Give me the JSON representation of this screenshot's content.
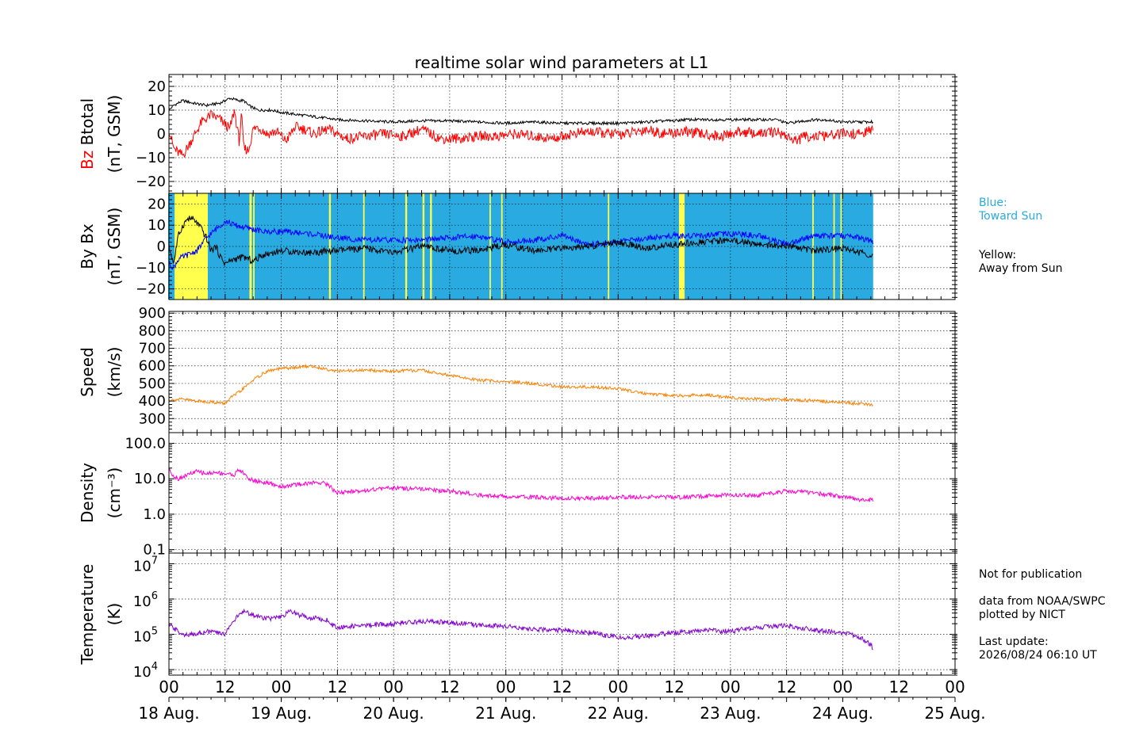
{
  "title": "realtime solar wind parameters at L1",
  "colors": {
    "background": "#ffffff",
    "toward_sun": "#29abe2",
    "away_from_sun": "#ffff4d",
    "btotal": "#000000",
    "bz": "#ff0000",
    "bx": "#0000ff",
    "by": "#000000",
    "speed": "#ff8000",
    "density": "#ff00d0",
    "temperature": "#8000d0",
    "grid": "#000000"
  },
  "legend": {
    "blue_line1": "Blue:",
    "blue_line2": "Toward Sun",
    "yellow_line1": "Yellow:",
    "yellow_line2": "Away from Sun"
  },
  "credits": {
    "not_for_publication": "Not for publication",
    "data_source": "data from NOAA/SWPC",
    "plotted_by": "plotted by NICT",
    "last_update_label": "Last update:",
    "last_update_value": "2026/08/24 06:10 UT"
  },
  "chart_data": [
    {
      "type": "line",
      "panel": "magnetic_field_total",
      "ylabel_parts": [
        "Bz",
        "Btotal",
        "(nT, GSM)"
      ],
      "ylim": [
        -25,
        25
      ],
      "yticks": [
        -20,
        -10,
        0,
        10,
        20
      ],
      "ytick_labels": [
        "−20",
        "−10",
        "0",
        "10",
        "20"
      ],
      "grid": true,
      "series": [
        {
          "name": "Btotal",
          "color": "#000000",
          "x_hours": [
            0,
            1,
            3,
            5,
            8,
            11,
            13,
            15,
            16,
            17,
            19,
            22,
            24,
            28,
            32,
            36,
            42,
            48,
            54,
            60,
            66,
            72,
            78,
            84,
            90,
            96,
            102,
            106,
            108,
            110,
            114,
            120,
            126,
            130,
            132,
            134,
            138,
            140,
            144,
            148,
            150.5
          ],
          "values": [
            10,
            12,
            14,
            13,
            12,
            13,
            15,
            14,
            14,
            12,
            10,
            10,
            9,
            8,
            7,
            6,
            5.5,
            5,
            5.5,
            5.5,
            5,
            4.5,
            5,
            4.5,
            4.5,
            4.5,
            5,
            5.5,
            5.5,
            6,
            6,
            6,
            6,
            6,
            4.5,
            5,
            6,
            6,
            5,
            5,
            5
          ]
        },
        {
          "name": "Bz",
          "color": "#ff0000",
          "x_hours": [
            0,
            1,
            2,
            3,
            5,
            7,
            9,
            11,
            13,
            14,
            15,
            15.5,
            16,
            17,
            18,
            19,
            21,
            23,
            25,
            27,
            29,
            31,
            34,
            38,
            42,
            46,
            50,
            54,
            58,
            62,
            66,
            70,
            74,
            78,
            82,
            86,
            90,
            94,
            98,
            102,
            106,
            110,
            114,
            118,
            122,
            126,
            130,
            132,
            134,
            136,
            140,
            144,
            148,
            150.5
          ],
          "values": [
            2,
            -6,
            -8,
            -9,
            -2,
            5,
            8,
            6,
            2,
            10,
            -3,
            8,
            -6,
            -7,
            2,
            3,
            0,
            1,
            -3,
            3,
            2,
            0,
            2,
            -2,
            -1,
            0,
            -1,
            2,
            -2,
            -2,
            -1,
            -1,
            0,
            -1,
            -2,
            0,
            1,
            0,
            0,
            2,
            0,
            1,
            0,
            -1,
            1,
            0,
            1,
            -1,
            -3,
            -1,
            -1,
            0,
            0,
            2
          ]
        }
      ]
    },
    {
      "type": "line",
      "panel": "magnetic_field_components",
      "ylabel_parts": [
        "By",
        "Bx",
        "(nT, GSM)"
      ],
      "ylim": [
        -25,
        25
      ],
      "yticks": [
        -20,
        -10,
        0,
        10,
        20
      ],
      "ytick_labels": [
        "−20",
        "−10",
        "0",
        "10",
        "20"
      ],
      "grid": true,
      "sector_background": {
        "x_extent_hours": [
          0,
          150.5
        ],
        "away_from_sun_intervals_hours": [
          [
            1.2,
            8.3
          ],
          [
            17.2,
            17.7
          ],
          [
            18.0,
            18.3
          ],
          [
            34.2,
            34.6
          ],
          [
            41.5,
            41.8
          ],
          [
            50.5,
            50.9
          ],
          [
            54.2,
            54.6
          ],
          [
            55.8,
            56.2
          ],
          [
            68.5,
            68.8
          ],
          [
            71.0,
            71.3
          ],
          [
            93.8,
            94.1
          ],
          [
            109.0,
            110.2
          ],
          [
            137.5,
            137.8
          ],
          [
            142.0,
            142.3
          ],
          [
            143.5,
            143.8
          ]
        ]
      },
      "series": [
        {
          "name": "Bx",
          "color": "#0000ff",
          "x_hours": [
            0,
            1,
            2,
            3,
            4,
            6,
            8,
            10,
            12,
            14,
            16,
            18,
            20,
            24,
            30,
            36,
            42,
            48,
            54,
            60,
            66,
            72,
            78,
            84,
            90,
            96,
            102,
            108,
            114,
            120,
            126,
            132,
            138,
            144,
            148,
            150.5
          ],
          "values": [
            -8,
            -10,
            -6,
            -5,
            -4,
            -2,
            4,
            8,
            12,
            10,
            9,
            8,
            7,
            7,
            6,
            4,
            3,
            3,
            3,
            4,
            5,
            2,
            3,
            5,
            1,
            2,
            4,
            5,
            5,
            6,
            5,
            1,
            5,
            5,
            4,
            2
          ]
        },
        {
          "name": "By",
          "color": "#000000",
          "x_hours": [
            0,
            1,
            2,
            3,
            4,
            5,
            6,
            7,
            8,
            9,
            10,
            11,
            12,
            14,
            16,
            18,
            20,
            24,
            30,
            36,
            42,
            48,
            54,
            60,
            66,
            72,
            78,
            84,
            90,
            96,
            102,
            108,
            114,
            120,
            126,
            132,
            138,
            144,
            148,
            150.5
          ],
          "values": [
            0,
            -8,
            5,
            10,
            13,
            13,
            11,
            8,
            4,
            -2,
            0,
            -5,
            -8,
            -6,
            -5,
            -7,
            -4,
            -2,
            -3,
            -2,
            -1,
            -3,
            0,
            -2,
            -2,
            1,
            -2,
            -1,
            0,
            2,
            -1,
            1,
            2,
            3,
            1,
            0,
            -2,
            -1,
            -3,
            -4
          ]
        }
      ]
    },
    {
      "type": "line",
      "panel": "speed",
      "ylabel_parts": [
        "Speed",
        "(km/s)"
      ],
      "ylim": [
        220,
        910
      ],
      "yticks": [
        300,
        400,
        500,
        600,
        700,
        800,
        900
      ],
      "ytick_labels": [
        "300",
        "400",
        "500",
        "600",
        "700",
        "800",
        "900"
      ],
      "grid": true,
      "series": [
        {
          "name": "Speed",
          "color": "#ff8000",
          "x_hours": [
            0,
            3,
            6,
            9,
            12,
            13,
            15,
            18,
            21,
            24,
            27,
            30,
            33,
            36,
            42,
            48,
            54,
            60,
            66,
            72,
            78,
            84,
            90,
            96,
            102,
            108,
            114,
            120,
            126,
            132,
            138,
            144,
            150.5
          ],
          "values": [
            405,
            410,
            400,
            395,
            385,
            415,
            450,
            520,
            570,
            585,
            590,
            600,
            585,
            570,
            575,
            570,
            575,
            545,
            520,
            510,
            500,
            480,
            480,
            470,
            440,
            430,
            435,
            420,
            410,
            410,
            400,
            390,
            380
          ]
        }
      ]
    },
    {
      "type": "line",
      "panel": "density",
      "ylabel_parts": [
        "Density",
        "(cm⁻³)"
      ],
      "yscale": "log",
      "ylim": [
        0.08,
        200
      ],
      "yticks": [
        0.1,
        1.0,
        10.0,
        100.0
      ],
      "ytick_labels": [
        "0.1",
        "1.0",
        "10.0",
        "100.0"
      ],
      "grid": true,
      "series": [
        {
          "name": "Density",
          "color": "#ff00d0",
          "x_hours": [
            0,
            1,
            2,
            4,
            6,
            8,
            10,
            12,
            14,
            15,
            16,
            17,
            18,
            20,
            22,
            24,
            28,
            32,
            34,
            35,
            36,
            40,
            48,
            54,
            60,
            66,
            72,
            78,
            84,
            90,
            96,
            102,
            108,
            114,
            120,
            126,
            132,
            138,
            144,
            148,
            150.5
          ],
          "values": [
            18,
            12,
            10,
            13,
            16,
            14,
            15,
            14,
            13,
            18,
            14,
            10,
            9,
            8,
            7,
            6,
            7,
            8,
            7,
            5,
            4,
            4.5,
            5.5,
            5,
            4.5,
            3.5,
            3.2,
            3,
            2.8,
            2.8,
            3,
            3.1,
            3,
            3.2,
            3.5,
            3.4,
            4.5,
            4,
            3,
            2.5,
            2.5
          ]
        }
      ]
    },
    {
      "type": "line",
      "panel": "temperature",
      "ylabel_parts": [
        "Temperature",
        "(K)"
      ],
      "yscale": "log",
      "ylim": [
        7000,
        20000000
      ],
      "yticks": [
        10000,
        100000,
        1000000,
        10000000
      ],
      "ytick_labels": [
        "10^4",
        "10^5",
        "10^6",
        "10^7"
      ],
      "grid": true,
      "series": [
        {
          "name": "Temperature",
          "color": "#8000d0",
          "x_hours": [
            0,
            2,
            4,
            6,
            9,
            12,
            13,
            14,
            16,
            18,
            20,
            22,
            24,
            26,
            28,
            30,
            32,
            34,
            35,
            36,
            42,
            48,
            54,
            60,
            66,
            72,
            78,
            84,
            90,
            96,
            102,
            108,
            114,
            120,
            126,
            132,
            138,
            144,
            148,
            150.5
          ],
          "values": [
            180000,
            120000,
            90000,
            110000,
            120000,
            100000,
            180000,
            250000,
            450000,
            350000,
            300000,
            280000,
            300000,
            450000,
            350000,
            300000,
            280000,
            250000,
            180000,
            160000,
            180000,
            200000,
            230000,
            220000,
            180000,
            170000,
            140000,
            130000,
            110000,
            80000,
            90000,
            110000,
            130000,
            120000,
            160000,
            180000,
            130000,
            110000,
            80000,
            40000
          ]
        }
      ]
    }
  ],
  "time_axis": {
    "range_hours": [
      0,
      168
    ],
    "major_tick_hours": [
      0,
      12,
      24,
      36,
      48,
      60,
      72,
      84,
      96,
      108,
      120,
      132,
      144,
      156,
      168
    ],
    "hour_labels": [
      "00",
      "12",
      "00",
      "12",
      "00",
      "12",
      "00",
      "12",
      "00",
      "12",
      "00",
      "12",
      "00",
      "12",
      "00"
    ],
    "day_tick_hours": [
      0,
      24,
      48,
      72,
      96,
      120,
      144,
      168
    ],
    "day_labels": [
      "18 Aug.",
      "19 Aug.",
      "20 Aug.",
      "21 Aug.",
      "22 Aug.",
      "23 Aug.",
      "24 Aug.",
      "25 Aug."
    ]
  }
}
